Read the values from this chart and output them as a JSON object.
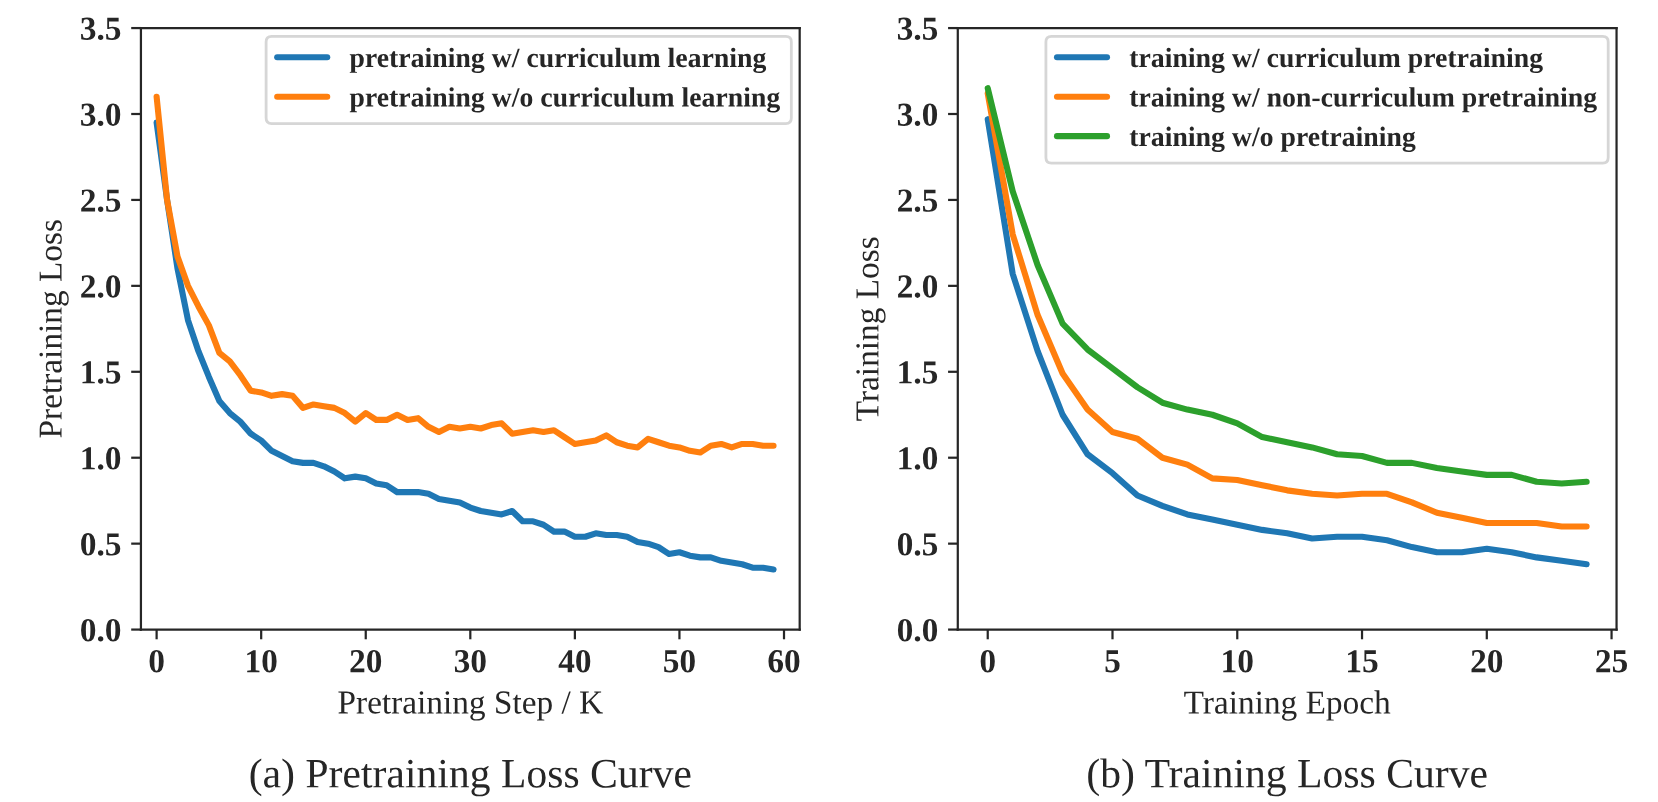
{
  "chart_data": [
    {
      "type": "line",
      "title": "(a) Pretraining Loss Curve",
      "xlabel": "Pretraining Step / K",
      "ylabel": "Pretraining Loss",
      "x": [
        0,
        1,
        2,
        3,
        4,
        5,
        6,
        7,
        8,
        9,
        10,
        11,
        12,
        13,
        14,
        15,
        16,
        17,
        18,
        19,
        20,
        21,
        22,
        23,
        24,
        25,
        26,
        27,
        28,
        29,
        30,
        31,
        32,
        33,
        34,
        35,
        36,
        37,
        38,
        39,
        40,
        41,
        42,
        43,
        44,
        45,
        46,
        47,
        48,
        49,
        50,
        51,
        52,
        53,
        54,
        55,
        56,
        57,
        58,
        59
      ],
      "series": [
        {
          "name": "pretraining w/ curriculum learning",
          "color": "#1f77b4",
          "values": [
            2.95,
            2.5,
            2.1,
            1.8,
            1.62,
            1.47,
            1.33,
            1.26,
            1.21,
            1.14,
            1.1,
            1.04,
            1.01,
            0.98,
            0.97,
            0.97,
            0.95,
            0.92,
            0.88,
            0.89,
            0.88,
            0.85,
            0.84,
            0.8,
            0.8,
            0.8,
            0.79,
            0.76,
            0.75,
            0.74,
            0.71,
            0.69,
            0.68,
            0.67,
            0.69,
            0.63,
            0.63,
            0.61,
            0.57,
            0.57,
            0.54,
            0.54,
            0.56,
            0.55,
            0.55,
            0.54,
            0.51,
            0.5,
            0.48,
            0.44,
            0.45,
            0.43,
            0.42,
            0.42,
            0.4,
            0.39,
            0.38,
            0.36,
            0.36,
            0.35
          ]
        },
        {
          "name": "pretraining w/o curriculum learning",
          "color": "#ff7f0e",
          "values": [
            3.1,
            2.5,
            2.17,
            2.0,
            1.88,
            1.77,
            1.61,
            1.56,
            1.48,
            1.39,
            1.38,
            1.36,
            1.37,
            1.36,
            1.29,
            1.31,
            1.3,
            1.29,
            1.26,
            1.21,
            1.26,
            1.22,
            1.22,
            1.25,
            1.22,
            1.23,
            1.18,
            1.15,
            1.18,
            1.17,
            1.18,
            1.17,
            1.19,
            1.2,
            1.14,
            1.15,
            1.16,
            1.15,
            1.16,
            1.12,
            1.08,
            1.09,
            1.1,
            1.13,
            1.09,
            1.07,
            1.06,
            1.11,
            1.09,
            1.07,
            1.06,
            1.04,
            1.03,
            1.07,
            1.08,
            1.06,
            1.08,
            1.08,
            1.07,
            1.07
          ]
        }
      ],
      "xlim": [
        -1.5,
        61.5
      ],
      "xticks": [
        0,
        10,
        20,
        30,
        40,
        50,
        60
      ],
      "ylim": [
        0,
        3.5
      ],
      "yticks": [
        {
          "value": 0,
          "label": "0.0"
        },
        0.5,
        {
          "value": 1,
          "label": "1.0"
        },
        1.5,
        {
          "value": 2,
          "label": "2.0"
        },
        2.5,
        {
          "value": 3,
          "label": "3.0"
        },
        3.5
      ],
      "grid": false,
      "legend": "top right",
      "line_style": "solid",
      "marker": "none"
    },
    {
      "type": "line",
      "title": "(b) Training Loss Curve",
      "xlabel": "Training Epoch",
      "ylabel": "Training Loss",
      "x": [
        0,
        1,
        2,
        3,
        4,
        5,
        6,
        7,
        8,
        9,
        10,
        11,
        12,
        13,
        14,
        15,
        16,
        17,
        18,
        19,
        20,
        21,
        22,
        23,
        24
      ],
      "series": [
        {
          "name": "training w/ curriculum pretraining",
          "color": "#1f77b4",
          "values": [
            2.97,
            2.07,
            1.62,
            1.25,
            1.02,
            0.91,
            0.78,
            0.72,
            0.67,
            0.64,
            0.61,
            0.58,
            0.56,
            0.53,
            0.54,
            0.54,
            0.52,
            0.48,
            0.45,
            0.45,
            0.47,
            0.45,
            0.42,
            0.4,
            0.38
          ]
        },
        {
          "name": "training w/ non-curriculum pretraining",
          "color": "#ff7f0e",
          "values": [
            3.12,
            2.3,
            1.83,
            1.49,
            1.28,
            1.15,
            1.11,
            1.0,
            0.96,
            0.88,
            0.87,
            0.84,
            0.81,
            0.79,
            0.78,
            0.79,
            0.79,
            0.74,
            0.68,
            0.65,
            0.62,
            0.62,
            0.62,
            0.6,
            0.6
          ]
        },
        {
          "name": "training w/o pretraining",
          "color": "#2ca02c",
          "values": [
            3.15,
            2.55,
            2.12,
            1.78,
            1.63,
            1.52,
            1.41,
            1.32,
            1.28,
            1.25,
            1.2,
            1.12,
            1.09,
            1.06,
            1.02,
            1.01,
            0.97,
            0.97,
            0.94,
            0.92,
            0.9,
            0.9,
            0.86,
            0.85,
            0.86
          ]
        }
      ],
      "xlim": [
        -1.2,
        25.2
      ],
      "xticks": [
        0,
        5,
        10,
        15,
        20,
        25
      ],
      "ylim": [
        0,
        3.5
      ],
      "yticks": [
        {
          "value": 0,
          "label": "0.0"
        },
        0.5,
        {
          "value": 1,
          "label": "1.0"
        },
        1.5,
        {
          "value": 2,
          "label": "2.0"
        },
        2.5,
        {
          "value": 3,
          "label": "3.0"
        },
        3.5
      ],
      "grid": false,
      "legend": "top right",
      "line_style": "solid",
      "marker": "none"
    }
  ]
}
